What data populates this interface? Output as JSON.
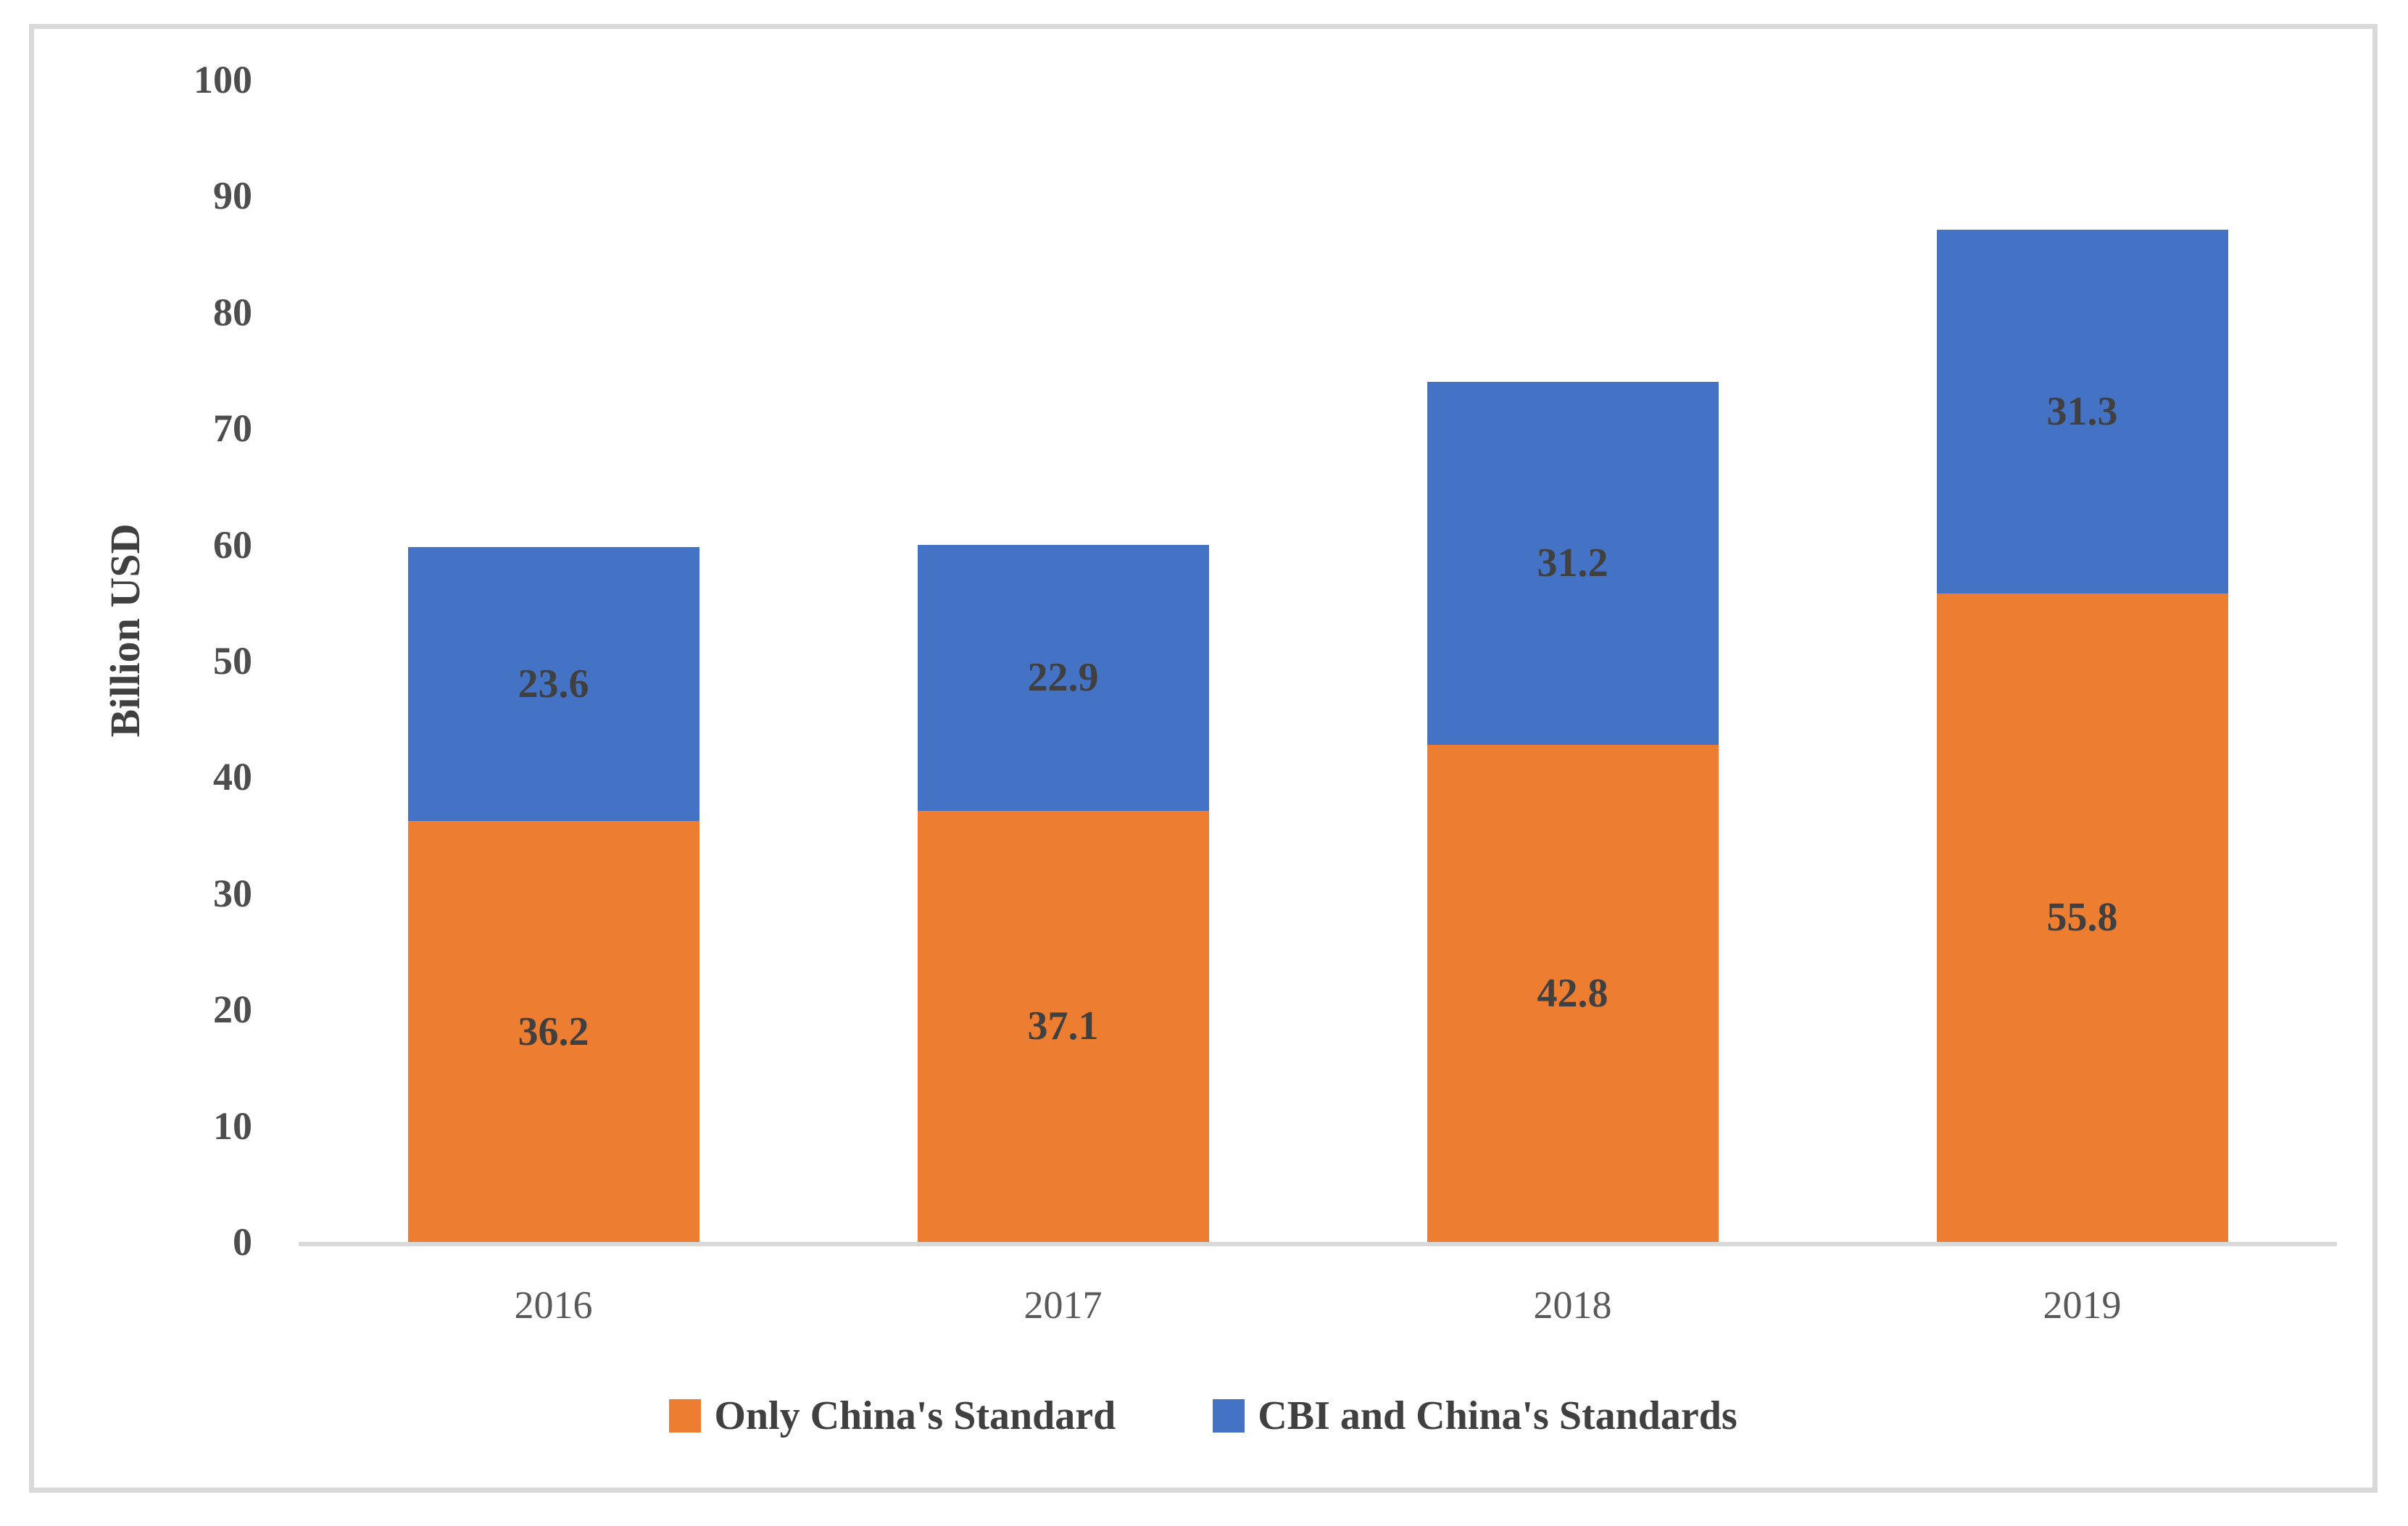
{
  "chart_data": {
    "type": "bar",
    "stacked": true,
    "title": "",
    "ylabel": "Billion USD",
    "xlabel": "",
    "categories": [
      "2016",
      "2017",
      "2018",
      "2019"
    ],
    "series": [
      {
        "name": "Only China's Standard",
        "color": "#ED7D31",
        "values": [
          36.2,
          37.1,
          42.8,
          55.8
        ]
      },
      {
        "name": "CBI and China's Standards",
        "color": "#4472C4",
        "values": [
          23.6,
          22.9,
          31.2,
          31.3
        ]
      }
    ],
    "totals": [
      59.8,
      60.0,
      74.0,
      87.1
    ],
    "ylim": [
      0,
      100
    ],
    "ytick_step": 10,
    "yticks": [
      0,
      10,
      20,
      30,
      40,
      50,
      60,
      70,
      80,
      90,
      100
    ],
    "grid": false,
    "legend_position": "bottom",
    "data_labels": "inside-center"
  },
  "colors": {
    "frame_border": "#d9d9d9",
    "axis_line": "#d9d9d9",
    "y_tick_label": "#4d4d4d",
    "x_tick_label": "#595959",
    "data_label": "#404040",
    "legend_text": "#404040",
    "background": "#ffffff"
  }
}
